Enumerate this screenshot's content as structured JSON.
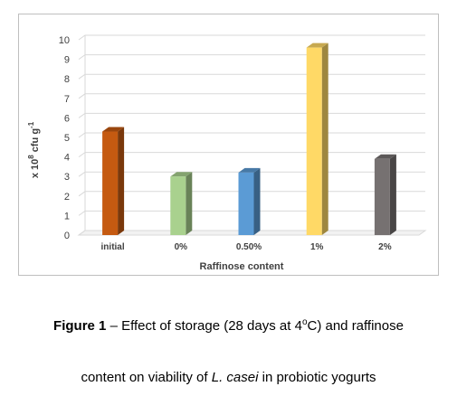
{
  "chart_data": {
    "type": "bar",
    "categories": [
      "initial",
      "0%",
      "0.50%",
      "1%",
      "2%"
    ],
    "values": [
      5.3,
      3.0,
      3.2,
      9.6,
      3.9
    ],
    "colors": [
      "#c55a11",
      "#a9d18e",
      "#5b9bd5",
      "#ffd966",
      "#767171"
    ],
    "xlabel": "Raffinose content",
    "ylabel_prefix": "x 10",
    "ylabel_sup1": "8",
    "ylabel_mid": " cfu g",
    "ylabel_sup2": "-1",
    "ylim": [
      0,
      10
    ],
    "yticks": [
      0,
      1,
      2,
      3,
      4,
      5,
      6,
      7,
      8,
      9,
      10
    ],
    "style": "3d-column",
    "grid": true,
    "legend": "none"
  },
  "caption": {
    "figure_label": "Figure 1",
    "line1_rest": " – Effect of storage (28 days at 4",
    "line1_sup": "o",
    "line1_end": "C) and raffinose",
    "line2_start": "content on viability of ",
    "line2_italic": "L. casei",
    "line2_end": " in probiotic yogurts"
  }
}
